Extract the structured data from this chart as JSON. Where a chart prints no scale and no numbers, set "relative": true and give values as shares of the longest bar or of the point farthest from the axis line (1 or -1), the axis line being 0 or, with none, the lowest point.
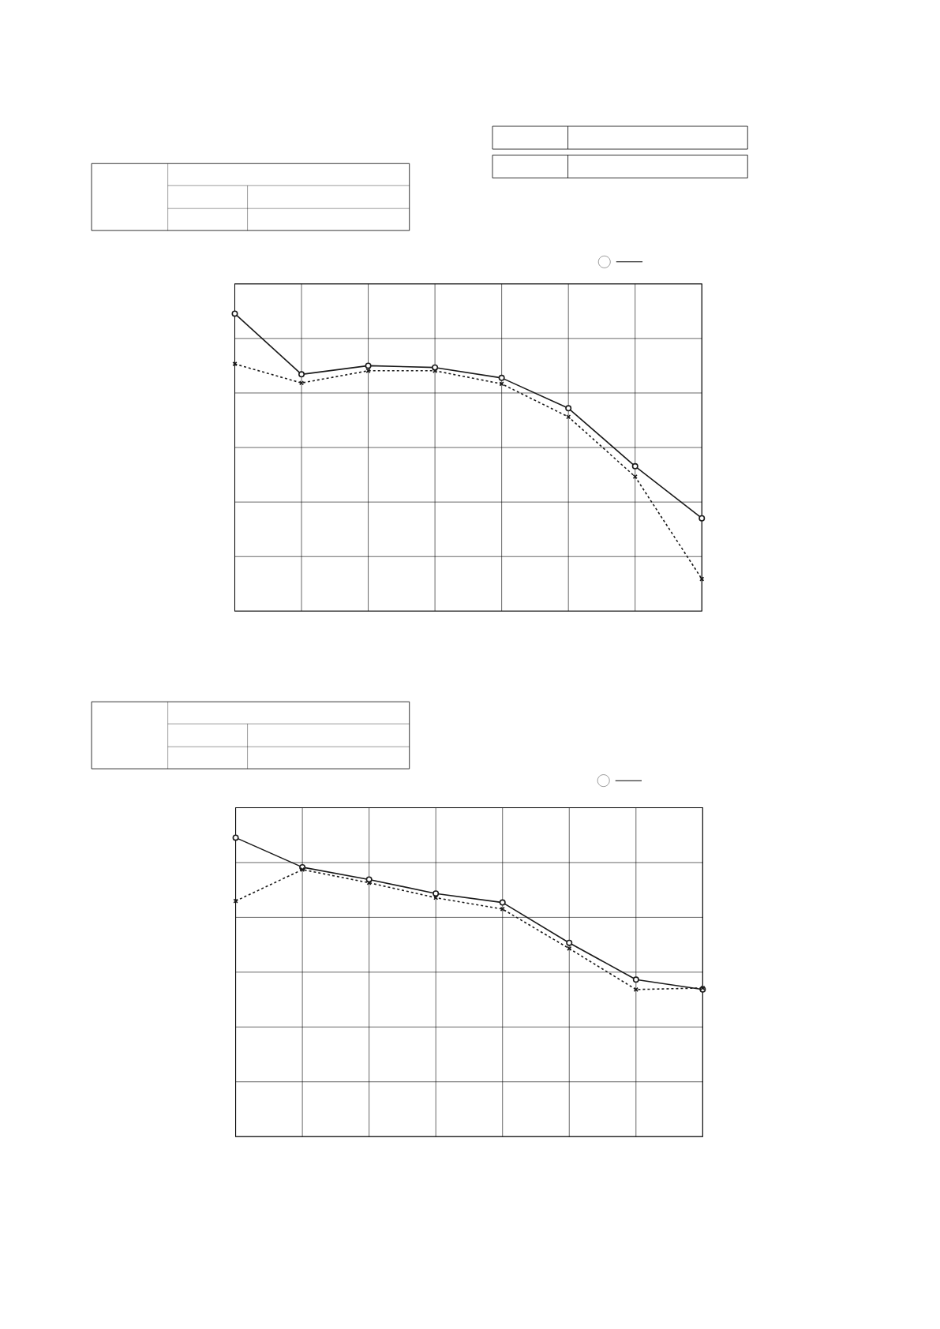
{
  "chart_data": [
    {
      "type": "line",
      "relative": true,
      "grid": true,
      "categories": [
        null,
        null,
        null,
        null,
        null,
        null,
        null,
        null
      ],
      "series": [
        {
          "color": "#1a1a1a",
          "marker": "circle",
          "line_style": "solid",
          "values": [
            1,
            0.796,
            0.825,
            0.819,
            0.784,
            0.682,
            0.487,
            0.312
          ]
        },
        {
          "color": "#1a1a1a",
          "marker": "cross",
          "line_style": "dashed",
          "values": [
            0.831,
            0.767,
            0.808,
            0.808,
            0.764,
            0.653,
            0.452,
            0.108
          ]
        }
      ]
    },
    {
      "type": "line",
      "relative": true,
      "grid": true,
      "categories": [
        null,
        null,
        null,
        null,
        null,
        null,
        null,
        null
      ],
      "series": [
        {
          "color": "#1a1a1a",
          "marker": "circle",
          "line_style": "solid",
          "values": [
            1,
            0.901,
            0.86,
            0.813,
            0.783,
            0.648,
            0.525,
            0.492
          ]
        },
        {
          "color": "#1a1a1a",
          "marker": "cross",
          "line_style": "dashed",
          "values": [
            0.788,
            0.893,
            0.849,
            0.799,
            0.761,
            0.629,
            0.492,
            0.497
          ]
        }
      ]
    }
  ]
}
